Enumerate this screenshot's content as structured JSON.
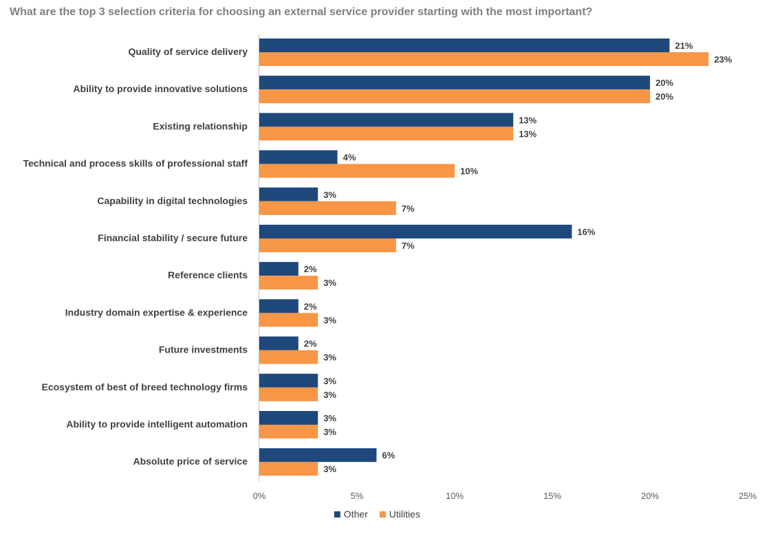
{
  "chart_data": {
    "type": "bar",
    "orientation": "horizontal",
    "title": "What are the top 3 selection criteria for choosing an external service provider starting with the most important?",
    "categories": [
      "Quality of service delivery",
      "Ability to provide innovative solutions",
      "Existing relationship",
      "Technical and process skills of professional staff",
      "Capability in digital technologies",
      "Financial stability / secure future",
      "Reference clients",
      "Industry domain expertise & experience",
      "Future investments",
      "Ecosystem of best of breed technology firms",
      "Ability to provide intelligent automation",
      "Absolute price of service"
    ],
    "series": [
      {
        "name": "Other",
        "color": "#1f497d",
        "values": [
          21,
          20,
          13,
          4,
          3,
          16,
          2,
          2,
          2,
          3,
          3,
          6
        ],
        "labels": [
          "21%",
          "20%",
          "13%",
          "4%",
          "3%",
          "16%",
          "2%",
          "2%",
          "2%",
          "3%",
          "3%",
          "6%"
        ]
      },
      {
        "name": "Utilities",
        "color": "#f79646",
        "values": [
          23,
          20,
          13,
          10,
          7,
          7,
          3,
          3,
          3,
          3,
          3,
          3
        ],
        "labels": [
          "23%",
          "20%",
          "13%",
          "10%",
          "7%",
          "7%",
          "3%",
          "3%",
          "3%",
          "3%",
          "3%",
          "3%"
        ]
      }
    ],
    "xlim": [
      0,
      25
    ],
    "xticks": [
      0,
      5,
      10,
      15,
      20,
      25
    ],
    "xtick_labels": [
      "0%",
      "5%",
      "10%",
      "15%",
      "20%",
      "25%"
    ],
    "grid": false,
    "legend_position": "bottom"
  }
}
